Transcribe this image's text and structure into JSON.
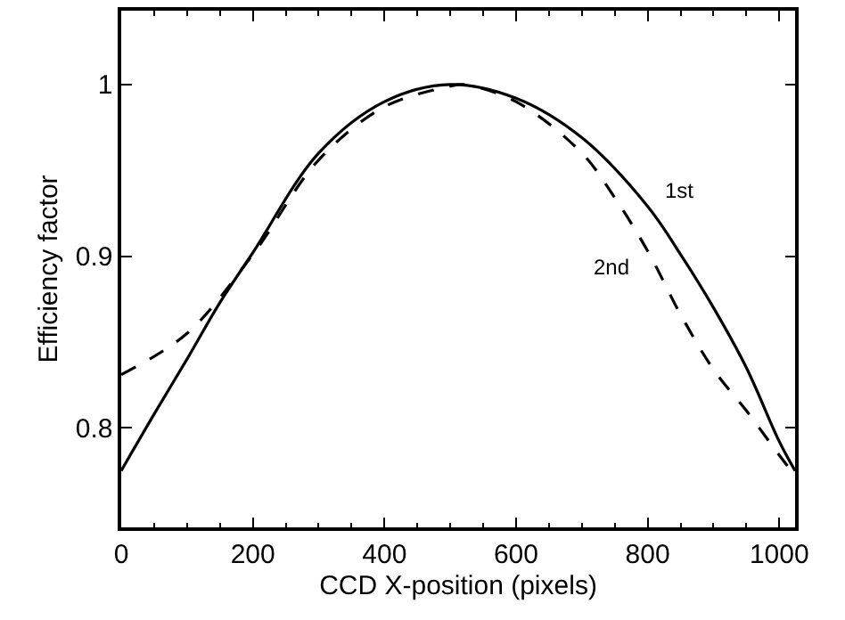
{
  "chart_data": {
    "type": "line",
    "xlabel": "CCD X-position (pixels)",
    "ylabel": "Efficiency factor",
    "xlim": [
      0,
      1024
    ],
    "xticks": [
      0,
      200,
      400,
      600,
      800,
      1000
    ],
    "ylim": [
      0.742,
      1.043
    ],
    "yticks": [
      0.8,
      0.9,
      {
        "value": 1,
        "label": "1"
      }
    ],
    "legend": false,
    "marker": "none",
    "series": [
      {
        "name": "1st",
        "color": "#000000",
        "line_style": "solid",
        "x": [
          0,
          50,
          100,
          150,
          200,
          300,
          400,
          500,
          600,
          700,
          800,
          850,
          900,
          950,
          1000,
          1024
        ],
        "values": [
          0.775,
          0.808,
          0.84,
          0.873,
          0.902,
          0.96,
          0.99,
          1.0,
          0.992,
          0.969,
          0.929,
          0.901,
          0.87,
          0.835,
          0.792,
          0.775
        ]
      },
      {
        "name": "2nd",
        "color": "#000000",
        "line_style": "dashed",
        "x": [
          0,
          100,
          200,
          300,
          400,
          500,
          520,
          600,
          700,
          750,
          800,
          850,
          900,
          950,
          1000,
          1024
        ],
        "values": [
          0.831,
          0.855,
          0.901,
          0.956,
          0.987,
          0.999,
          1.0,
          0.99,
          0.96,
          0.934,
          0.903,
          0.866,
          0.834,
          0.81,
          0.784,
          0.772
        ]
      }
    ]
  }
}
